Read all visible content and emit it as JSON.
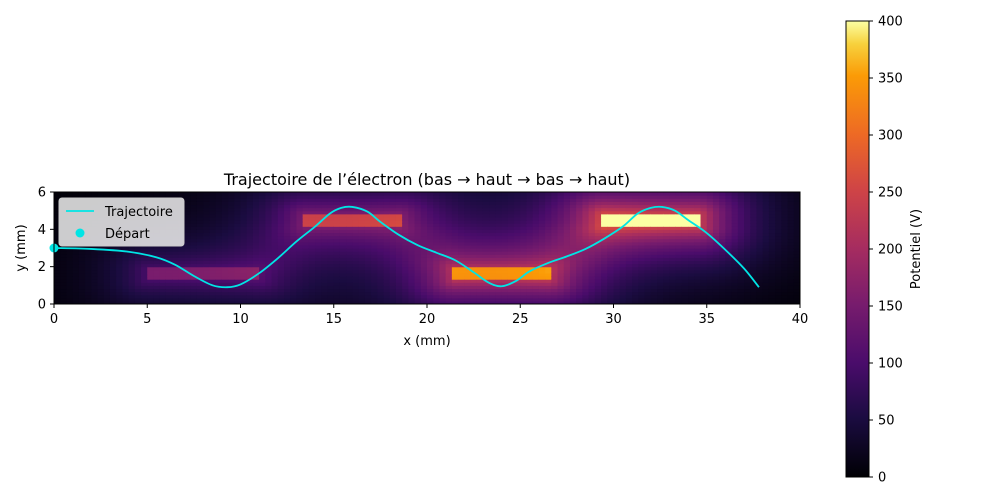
{
  "chart_data": {
    "type": "heatmap",
    "title": "Trajectoire de l’électron (bas → haut → bas → haut)",
    "xlabel": "x (mm)",
    "ylabel": "y (mm)",
    "xlim": [
      0,
      40
    ],
    "ylim": [
      0,
      6
    ],
    "x_ticks": [
      "0",
      "5",
      "10",
      "15",
      "20",
      "25",
      "30",
      "35",
      "40"
    ],
    "y_ticks": [
      "0",
      "2",
      "4",
      "6"
    ],
    "grid": false,
    "legend_placement": "upper-left",
    "colormap": "inferno",
    "colorbar": {
      "label": "Potentiel (V)",
      "range": [
        0,
        400
      ],
      "ticks": [
        "0",
        "50",
        "100",
        "150",
        "200",
        "250",
        "300",
        "350",
        "400"
      ]
    },
    "potential_sources": [
      {
        "x": [
          5,
          11
        ],
        "y": [
          1.3,
          1.9
        ],
        "potential": 150
      },
      {
        "x": [
          13.5,
          18.5
        ],
        "y": [
          4.2,
          4.8
        ],
        "potential": 230
      },
      {
        "x": [
          21.5,
          26.5
        ],
        "y": [
          1.3,
          1.9
        ],
        "potential": 320
      },
      {
        "x": [
          29.5,
          34.5
        ],
        "y": [
          4.2,
          4.8
        ],
        "potential": 400
      }
    ],
    "series": [
      {
        "name": "Trajectoire",
        "type": "line",
        "color": "#00e5e5",
        "x": [
          0,
          2,
          4,
          5.5,
          6.5,
          7.5,
          8.5,
          9.3,
          10,
          11,
          12,
          13,
          14,
          14.8,
          15.4,
          16,
          16.8,
          17.5,
          18.5,
          19.5,
          20.5,
          21.5,
          22.5,
          23.3,
          24,
          24.8,
          25.5,
          26.5,
          27.5,
          28.5,
          29.5,
          30.5,
          31.3,
          32,
          32.6,
          33.3,
          34,
          35,
          36,
          37,
          37.8
        ],
        "y": [
          3.0,
          2.95,
          2.8,
          2.5,
          2.1,
          1.5,
          1.0,
          0.9,
          1.05,
          1.65,
          2.45,
          3.35,
          4.15,
          4.85,
          5.15,
          5.2,
          4.95,
          4.4,
          3.7,
          3.15,
          2.75,
          2.35,
          1.7,
          1.15,
          0.95,
          1.25,
          1.75,
          2.2,
          2.55,
          2.95,
          3.5,
          4.15,
          4.85,
          5.15,
          5.2,
          5.0,
          4.5,
          3.8,
          2.9,
          1.9,
          0.9
        ]
      },
      {
        "name": "Départ",
        "type": "scatter",
        "color": "#00e5e5",
        "x": [
          0
        ],
        "y": [
          3.0
        ]
      }
    ]
  }
}
